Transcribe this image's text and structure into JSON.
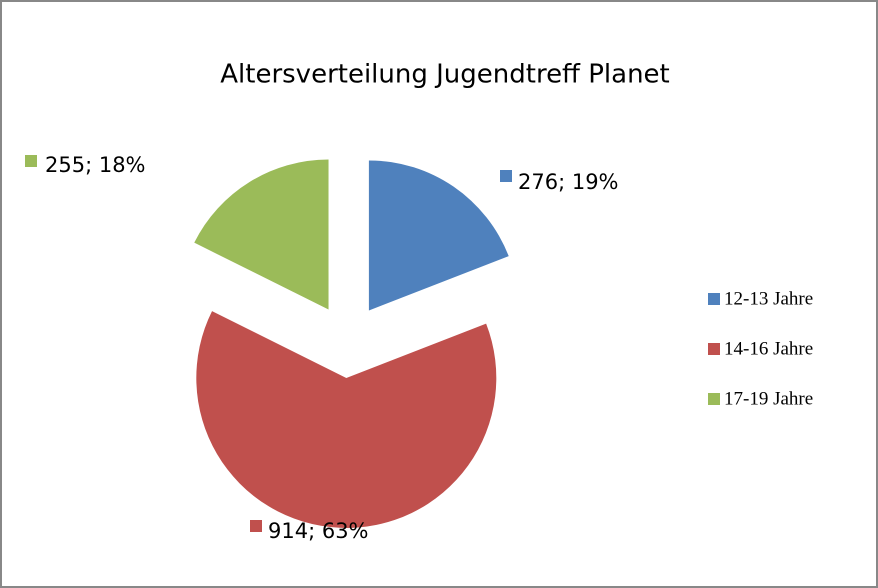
{
  "chart_data": {
    "type": "pie",
    "title": "Altersverteilung Jugendtreff Planet",
    "categories": [
      "12-13 Jahre",
      "14-16 Jahre",
      "17-19 Jahre"
    ],
    "values": [
      276,
      914,
      255
    ],
    "value_labels": [
      "276; 19%",
      "914; 63%",
      "255; 18%"
    ],
    "colors": [
      "#4f81bd",
      "#c0504d",
      "#9bbb59"
    ],
    "legend": "right"
  }
}
